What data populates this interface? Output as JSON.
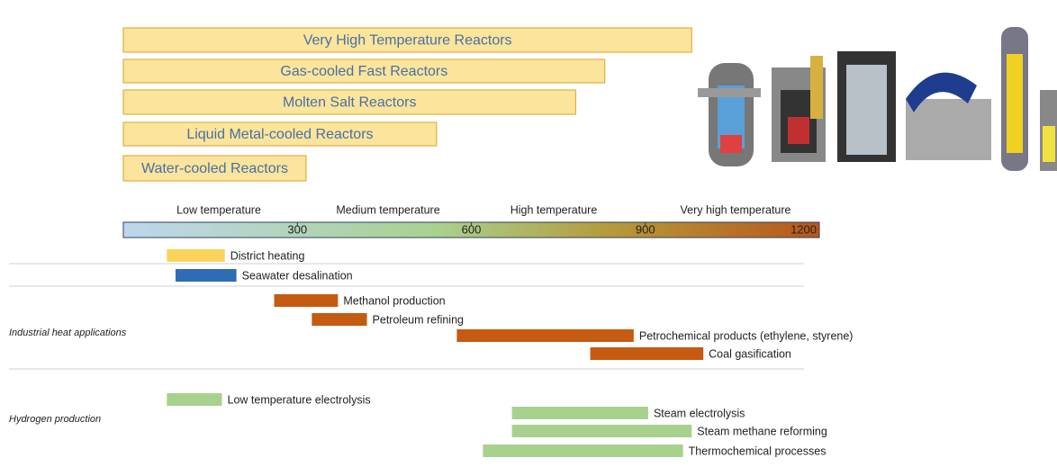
{
  "chart_data": {
    "type": "range",
    "xlim": [
      0,
      1200
    ],
    "xticks": [
      300,
      600,
      900,
      1200
    ],
    "zones": [
      "Low temperature",
      "Medium temperature",
      "High temperature",
      "Very high temperature"
    ],
    "reactors": [
      {
        "name": "Very High Temperature Reactors",
        "start": 0,
        "end": 980
      },
      {
        "name": "Gas-cooled Fast Reactors",
        "start": 0,
        "end": 830
      },
      {
        "name": "Molten Salt Reactors",
        "start": 0,
        "end": 780
      },
      {
        "name": "Liquid Metal-cooled Reactors",
        "start": 0,
        "end": 540
      },
      {
        "name": "Water-cooled Reactors",
        "start": 0,
        "end": 315
      }
    ],
    "reactor_color": "#fbe49b",
    "groups": [
      "Industrial heat applications",
      "Hydrogen production"
    ],
    "applications": [
      {
        "name": "District heating",
        "start": 75,
        "end": 175,
        "color": "#f9d45c"
      },
      {
        "name": "Seawater desalination",
        "start": 90,
        "end": 195,
        "color": "#2e6db4"
      },
      {
        "name": "Methanol production",
        "start": 260,
        "end": 370,
        "color": "#c55a11"
      },
      {
        "name": "Petroleum refining",
        "start": 325,
        "end": 420,
        "color": "#c55a11"
      },
      {
        "name": "Petrochemical products (ethylene, styrene)",
        "start": 575,
        "end": 880,
        "color": "#c55a11"
      },
      {
        "name": "Coal gasification",
        "start": 805,
        "end": 1000,
        "color": "#c55a11"
      },
      {
        "name": "Low temperature electrolysis",
        "start": 75,
        "end": 170,
        "color": "#a9d18e"
      },
      {
        "name": "Steam electrolysis",
        "start": 670,
        "end": 905,
        "color": "#a9d18e"
      },
      {
        "name": "Steam methane reforming",
        "start": 670,
        "end": 980,
        "color": "#a9d18e"
      },
      {
        "name": "Thermochemical processes",
        "start": 620,
        "end": 965,
        "color": "#a9d18e"
      }
    ]
  }
}
